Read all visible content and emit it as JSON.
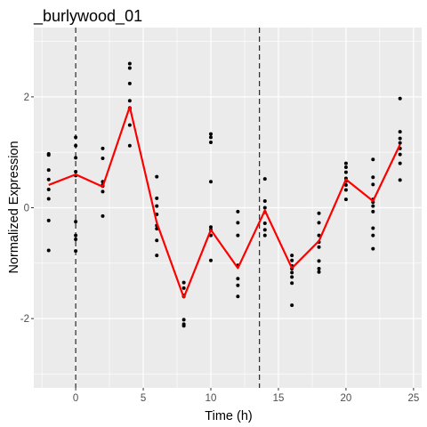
{
  "chart_data": {
    "type": "scatter",
    "title": "_burlywood_01",
    "xlabel": "Time (h)",
    "ylabel": "Normalized Expression",
    "xlim": [
      -3.1,
      25.6
    ],
    "ylim": [
      -3.25,
      3.25
    ],
    "x_ticks": [
      0,
      5,
      10,
      15,
      20,
      25
    ],
    "y_ticks": [
      -2,
      0,
      2
    ],
    "x_tick_labels": [
      "0",
      "5",
      "10",
      "15",
      "20",
      "25"
    ],
    "y_tick_labels": [
      "-2",
      "0",
      "2"
    ],
    "grid": true,
    "vertical_lines": [
      0,
      13.6
    ],
    "colors": {
      "panel": "#ebebeb",
      "grid": "#ffffff",
      "points": "#000000",
      "mean_line": "#ff0000",
      "vline": "#000000"
    },
    "series": [
      {
        "type": "scatter",
        "x": [
          -2,
          -2,
          -2,
          -2,
          -2,
          -2,
          -2,
          -2,
          0,
          0,
          0,
          0,
          0,
          0,
          0,
          0,
          0,
          2,
          2,
          2,
          2,
          2,
          2,
          2,
          4,
          4,
          4,
          4,
          4,
          4,
          4,
          4,
          6,
          6,
          6,
          6,
          6,
          6,
          6,
          6,
          8,
          8,
          8,
          8,
          8,
          8,
          8,
          10,
          10,
          10,
          10,
          10,
          10,
          10,
          10,
          12,
          12,
          12,
          12,
          12,
          12,
          12,
          14,
          14,
          14,
          14,
          14,
          14,
          14,
          16,
          16,
          16,
          16,
          16,
          16,
          16,
          16,
          18,
          18,
          18,
          18,
          18,
          18,
          18,
          18,
          20,
          20,
          20,
          20,
          20,
          20,
          20,
          20,
          22,
          22,
          22,
          22,
          22,
          22,
          22,
          22,
          22,
          22,
          24,
          24,
          24,
          24,
          24,
          24,
          24,
          24
        ],
        "y": [
          0.97,
          0.68,
          0.51,
          0.33,
          0.16,
          -0.23,
          -0.77,
          0.95,
          1.27,
          1.12,
          0.9,
          0.65,
          -0.25,
          -0.5,
          -0.57,
          -0.78,
          0.58,
          1.07,
          0.89,
          0.47,
          0.39,
          0.29,
          -0.15,
          0.41,
          2.6,
          2.52,
          2.24,
          1.93,
          1.78,
          1.49,
          1.12,
          1.8,
          0.56,
          0.17,
          0.03,
          -0.12,
          -0.32,
          -0.38,
          -0.59,
          -0.86,
          -1.35,
          -1.45,
          -1.58,
          -2.02,
          -2.1,
          -2.13,
          -1.6,
          1.33,
          1.27,
          1.18,
          0.47,
          -0.35,
          -0.5,
          -0.95,
          -0.4,
          -0.07,
          -0.27,
          -0.5,
          -1.04,
          -1.28,
          -1.4,
          -1.6,
          0.52,
          0.12,
          0.0,
          -0.08,
          -0.28,
          -0.4,
          -0.5,
          -0.86,
          -0.95,
          -1.1,
          -1.17,
          -1.25,
          -1.36,
          -1.76,
          -1.05,
          -0.1,
          -0.27,
          -0.5,
          -0.71,
          -0.96,
          -1.1,
          -1.16,
          -0.62,
          0.8,
          0.73,
          0.64,
          0.53,
          0.41,
          0.32,
          0.15,
          0.48,
          0.87,
          0.55,
          0.42,
          0.1,
          0.03,
          -0.07,
          -0.37,
          -0.5,
          -0.74,
          0.15,
          1.97,
          1.37,
          1.25,
          1.17,
          1.07,
          0.96,
          0.8,
          0.5
        ]
      },
      {
        "type": "line",
        "x": [
          -2,
          0,
          2,
          4,
          6,
          8,
          10,
          12,
          14,
          16,
          18,
          20,
          22,
          24
        ],
        "y": [
          0.41,
          0.6,
          0.38,
          1.82,
          -0.27,
          -1.62,
          -0.4,
          -1.09,
          -0.05,
          -1.09,
          -0.6,
          0.51,
          0.12,
          1.14
        ]
      }
    ]
  }
}
